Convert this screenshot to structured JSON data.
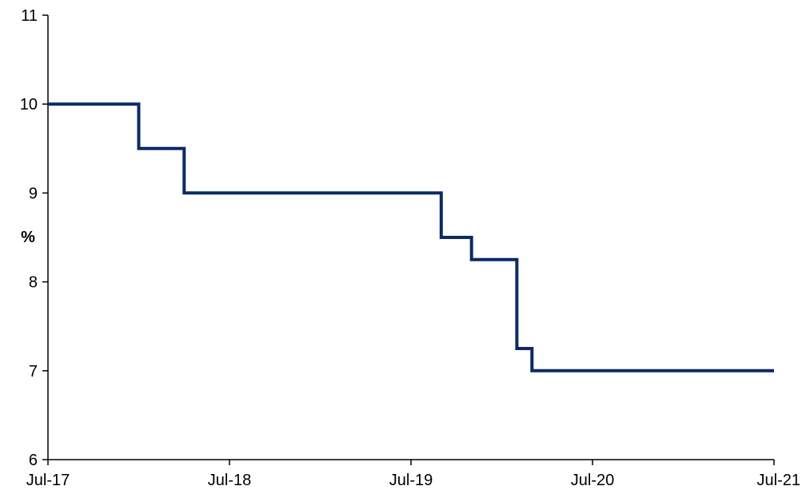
{
  "chart_data": {
    "type": "line",
    "step": true,
    "title": "",
    "xlabel": "",
    "ylabel": "%",
    "xlim": [
      "2017-07",
      "2021-07"
    ],
    "ylim": [
      6,
      11
    ],
    "y_ticks": [
      6,
      7,
      8,
      9,
      10,
      11
    ],
    "x_ticks": [
      "Jul-17",
      "Jul-18",
      "Jul-19",
      "Jul-20",
      "Jul-21"
    ],
    "grid": false,
    "legend": "none",
    "colors": {
      "line": "#0b2a66",
      "axis": "#000000"
    },
    "series": [
      {
        "points": [
          {
            "x": "2017-07",
            "y": 10
          },
          {
            "x": "2018-01",
            "y": 10
          },
          {
            "x": "2018-01",
            "y": 9.5
          },
          {
            "x": "2018-04",
            "y": 9.5
          },
          {
            "x": "2018-04",
            "y": 9
          },
          {
            "x": "2019-09",
            "y": 9
          },
          {
            "x": "2019-09",
            "y": 8.5
          },
          {
            "x": "2019-11",
            "y": 8.5
          },
          {
            "x": "2019-11",
            "y": 8.25
          },
          {
            "x": "2020-02",
            "y": 8.25
          },
          {
            "x": "2020-02",
            "y": 7.25
          },
          {
            "x": "2020-03",
            "y": 7.25
          },
          {
            "x": "2020-03",
            "y": 7
          },
          {
            "x": "2021-07",
            "y": 7
          }
        ]
      }
    ]
  }
}
